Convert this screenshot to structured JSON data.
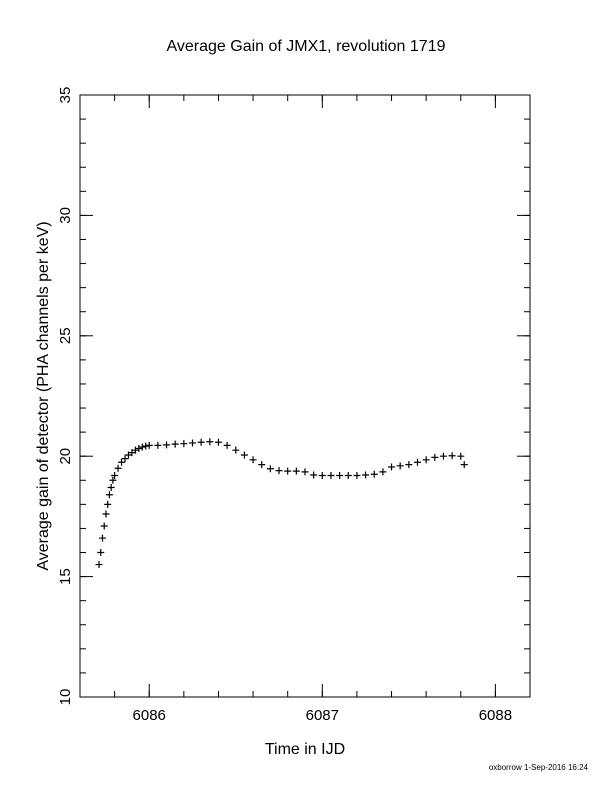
{
  "chart_data": {
    "type": "scatter",
    "title": "Average Gain of JMX1, revolution 1719",
    "xlabel": "Time in IJD",
    "ylabel": "Average gain of detector (PHA channels per keV)",
    "xlim": [
      6085.6,
      6088.2
    ],
    "ylim": [
      10,
      35
    ],
    "xticks": [
      6086,
      6087,
      6088
    ],
    "yticks": [
      10,
      15,
      20,
      25,
      30,
      35
    ],
    "marker": "plus",
    "grid": false,
    "legend": "none",
    "x": [
      6085.71,
      6085.72,
      6085.73,
      6085.74,
      6085.75,
      6085.76,
      6085.77,
      6085.78,
      6085.79,
      6085.8,
      6085.82,
      6085.84,
      6085.86,
      6085.88,
      6085.9,
      6085.92,
      6085.94,
      6085.96,
      6085.98,
      6086.0,
      6086.05,
      6086.1,
      6086.15,
      6086.2,
      6086.25,
      6086.3,
      6086.35,
      6086.4,
      6086.45,
      6086.5,
      6086.55,
      6086.6,
      6086.65,
      6086.7,
      6086.75,
      6086.8,
      6086.85,
      6086.9,
      6086.95,
      6087.0,
      6087.05,
      6087.1,
      6087.15,
      6087.2,
      6087.25,
      6087.3,
      6087.35,
      6087.4,
      6087.45,
      6087.5,
      6087.55,
      6087.6,
      6087.65,
      6087.7,
      6087.75,
      6087.8,
      6087.82
    ],
    "y": [
      15.5,
      16.0,
      16.6,
      17.1,
      17.6,
      18.0,
      18.4,
      18.7,
      19.0,
      19.2,
      19.5,
      19.75,
      19.9,
      20.05,
      20.15,
      20.25,
      20.32,
      20.38,
      20.42,
      20.45,
      20.45,
      20.47,
      20.5,
      20.52,
      20.55,
      20.58,
      20.6,
      20.58,
      20.45,
      20.25,
      20.05,
      19.85,
      19.65,
      19.48,
      19.4,
      19.38,
      19.38,
      19.35,
      19.22,
      19.2,
      19.2,
      19.2,
      19.2,
      19.2,
      19.22,
      19.25,
      19.35,
      19.55,
      19.6,
      19.65,
      19.75,
      19.85,
      19.95,
      20.0,
      20.02,
      20.0,
      19.65
    ]
  },
  "footer": {
    "credit": "oxborrow 1-Sep-2016 16:24"
  }
}
